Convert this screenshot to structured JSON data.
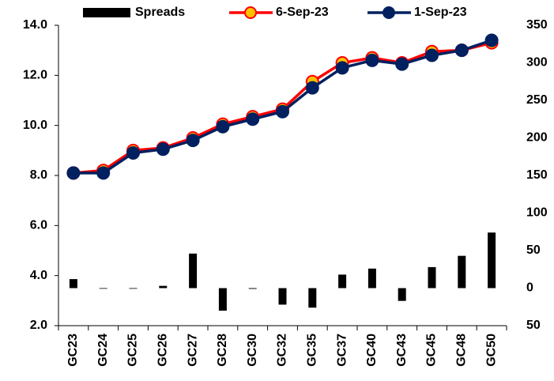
{
  "chart_data": {
    "type": "bar_line",
    "categories": [
      "GC23",
      "GC24",
      "GC25",
      "GC26",
      "GC27",
      "GC28",
      "GC30",
      "GC32",
      "GC35",
      "GC37",
      "GC40",
      "GC43",
      "GC45",
      "GC48",
      "GC50"
    ],
    "series": [
      {
        "name": "Spreads",
        "type": "bar",
        "axis": "y2",
        "color": "#000000",
        "values": [
          12,
          0,
          0,
          3,
          46,
          -30,
          -1,
          -22,
          -26,
          18,
          26,
          -17,
          28,
          43,
          74
        ]
      },
      {
        "name": "6-Sep-23",
        "type": "line",
        "axis": "y",
        "color": "#ff0000",
        "marker_color": "#ffc000",
        "values": [
          8.1,
          8.2,
          9.0,
          9.1,
          9.5,
          10.05,
          10.35,
          10.65,
          11.75,
          12.5,
          12.7,
          12.5,
          12.95,
          13.0,
          13.3
        ]
      },
      {
        "name": "1-Sep-23",
        "type": "line",
        "axis": "y",
        "color": "#002060",
        "marker_color": "#002060",
        "values": [
          8.1,
          8.1,
          8.9,
          9.05,
          9.4,
          9.95,
          10.25,
          10.55,
          11.5,
          12.3,
          12.6,
          12.45,
          12.8,
          13.0,
          13.4
        ]
      }
    ],
    "ylim": [
      2,
      14
    ],
    "yticks": [
      {
        "value": 2,
        "label": "2.0"
      },
      {
        "value": 4,
        "label": "4.0"
      },
      {
        "value": 6,
        "label": "6.0"
      },
      {
        "value": 8,
        "label": "8.0"
      },
      {
        "value": 10,
        "label": "10.0"
      },
      {
        "value": 12,
        "label": "12.0"
      },
      {
        "value": 14,
        "label": "14.0"
      }
    ],
    "y2lim": [
      -50,
      350
    ],
    "y2ticks": [
      {
        "value": -50,
        "label": "50",
        "color": "#ff0000"
      },
      0,
      50,
      100,
      150,
      200,
      250,
      300,
      350
    ],
    "legend": "top"
  }
}
